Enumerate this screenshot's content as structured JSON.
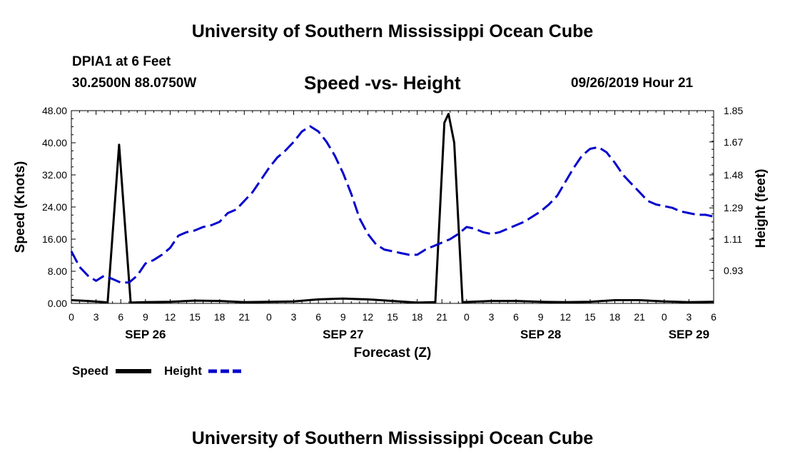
{
  "header": {
    "top_title": "University of Southern Mississippi Ocean Cube",
    "station": "DPIA1 at 6 Feet",
    "coords": "30.2500N 88.0750W",
    "datetime": "09/26/2019 Hour 21",
    "bottom_title": "University of Southern Mississippi Ocean Cube"
  },
  "chart_data": {
    "type": "line",
    "title": "Speed -vs- Height",
    "xlabel": "Forecast (Z)",
    "ylabel_left": "Speed (Knots)",
    "ylabel_right": "Height (feet)",
    "x_unit": "hours since SEP 26 00Z",
    "xlim": [
      0,
      78
    ],
    "x_ticks": [
      0,
      3,
      6,
      9,
      12,
      15,
      18,
      21,
      24,
      27,
      30,
      33,
      36,
      39,
      42,
      45,
      48,
      51,
      54,
      57,
      60,
      63,
      66,
      69,
      72,
      75,
      78
    ],
    "x_tick_labels": [
      "0",
      "3",
      "6",
      "9",
      "12",
      "15",
      "18",
      "21",
      "0",
      "3",
      "6",
      "9",
      "12",
      "15",
      "18",
      "21",
      "0",
      "3",
      "6",
      "9",
      "12",
      "15",
      "18",
      "21",
      "0",
      "3",
      "6"
    ],
    "date_labels": [
      {
        "x": 9,
        "label": "SEP 26"
      },
      {
        "x": 33,
        "label": "SEP 27"
      },
      {
        "x": 57,
        "label": "SEP 28"
      },
      {
        "x": 75,
        "label": "SEP 29"
      }
    ],
    "ylim_left": [
      0,
      48
    ],
    "y_ticks_left": [
      0,
      8,
      16,
      24,
      32,
      40,
      48
    ],
    "y_tick_labels_left": [
      "0.00",
      "8.00",
      "16.00",
      "24.00",
      "32.00",
      "40.00",
      "48.00"
    ],
    "ylim_right": [
      0.74,
      1.85
    ],
    "y_ticks_right": [
      0.93,
      1.11,
      1.29,
      1.48,
      1.67,
      1.85
    ],
    "y_tick_labels_right": [
      "0.93",
      "1.11",
      "1.29",
      "1.48",
      "1.67",
      "1.85"
    ],
    "series": [
      {
        "name": "Speed",
        "axis": "left",
        "color": "#000000",
        "style": "solid",
        "points": [
          [
            0,
            0.8
          ],
          [
            2,
            0.6
          ],
          [
            4,
            0.3
          ],
          [
            4.4,
            0.2
          ],
          [
            5.8,
            39.5
          ],
          [
            7.2,
            0.2
          ],
          [
            9,
            0.3
          ],
          [
            12,
            0.4
          ],
          [
            15,
            0.7
          ],
          [
            18,
            0.6
          ],
          [
            21,
            0.3
          ],
          [
            24,
            0.4
          ],
          [
            27,
            0.5
          ],
          [
            30,
            1.0
          ],
          [
            33,
            1.2
          ],
          [
            36,
            1.0
          ],
          [
            39,
            0.6
          ],
          [
            42,
            0.2
          ],
          [
            44,
            0.3
          ],
          [
            44.2,
            0.3
          ],
          [
            45.3,
            45
          ],
          [
            45.8,
            47.2
          ],
          [
            46.5,
            40
          ],
          [
            47.5,
            0.3
          ],
          [
            51,
            0.6
          ],
          [
            54,
            0.6
          ],
          [
            57,
            0.4
          ],
          [
            60,
            0.3
          ],
          [
            63,
            0.4
          ],
          [
            66,
            0.8
          ],
          [
            69,
            0.8
          ],
          [
            72,
            0.5
          ],
          [
            75,
            0.3
          ],
          [
            78,
            0.4
          ]
        ]
      },
      {
        "name": "Height",
        "axis": "right",
        "color": "#0000cc",
        "style": "dashed",
        "points": [
          [
            0,
            1.04
          ],
          [
            1,
            0.95
          ],
          [
            2,
            0.9
          ],
          [
            3,
            0.87
          ],
          [
            4,
            0.9
          ],
          [
            5,
            0.88
          ],
          [
            6,
            0.86
          ],
          [
            7,
            0.86
          ],
          [
            8,
            0.9
          ],
          [
            9,
            0.97
          ],
          [
            10,
            0.99
          ],
          [
            11,
            1.02
          ],
          [
            12,
            1.06
          ],
          [
            13,
            1.13
          ],
          [
            14,
            1.15
          ],
          [
            15,
            1.16
          ],
          [
            16,
            1.18
          ],
          [
            17,
            1.19
          ],
          [
            18,
            1.21
          ],
          [
            19,
            1.26
          ],
          [
            20,
            1.28
          ],
          [
            21,
            1.33
          ],
          [
            22,
            1.38
          ],
          [
            23,
            1.45
          ],
          [
            24,
            1.52
          ],
          [
            25,
            1.58
          ],
          [
            26,
            1.62
          ],
          [
            27,
            1.67
          ],
          [
            28,
            1.73
          ],
          [
            29,
            1.76
          ],
          [
            30,
            1.73
          ],
          [
            31,
            1.67
          ],
          [
            32,
            1.59
          ],
          [
            33,
            1.49
          ],
          [
            34,
            1.37
          ],
          [
            35,
            1.23
          ],
          [
            36,
            1.14
          ],
          [
            37,
            1.08
          ],
          [
            38,
            1.05
          ],
          [
            39,
            1.04
          ],
          [
            40,
            1.03
          ],
          [
            41,
            1.02
          ],
          [
            42,
            1.02
          ],
          [
            43,
            1.05
          ],
          [
            44,
            1.07
          ],
          [
            45,
            1.09
          ],
          [
            46,
            1.11
          ],
          [
            47,
            1.14
          ],
          [
            48,
            1.18
          ],
          [
            49,
            1.17
          ],
          [
            50,
            1.15
          ],
          [
            51,
            1.14
          ],
          [
            52,
            1.15
          ],
          [
            53,
            1.17
          ],
          [
            54,
            1.19
          ],
          [
            55,
            1.21
          ],
          [
            56,
            1.24
          ],
          [
            57,
            1.27
          ],
          [
            58,
            1.31
          ],
          [
            59,
            1.36
          ],
          [
            60,
            1.44
          ],
          [
            61,
            1.52
          ],
          [
            62,
            1.59
          ],
          [
            63,
            1.63
          ],
          [
            64,
            1.64
          ],
          [
            65,
            1.61
          ],
          [
            66,
            1.55
          ],
          [
            67,
            1.48
          ],
          [
            68,
            1.43
          ],
          [
            69,
            1.38
          ],
          [
            70,
            1.33
          ],
          [
            71,
            1.31
          ],
          [
            72,
            1.3
          ],
          [
            73,
            1.29
          ],
          [
            74,
            1.27
          ],
          [
            75,
            1.26
          ],
          [
            76,
            1.25
          ],
          [
            77,
            1.25
          ],
          [
            78,
            1.24
          ]
        ]
      }
    ],
    "legend": {
      "placement": "below-left",
      "items": [
        "Speed",
        "Height"
      ]
    }
  }
}
